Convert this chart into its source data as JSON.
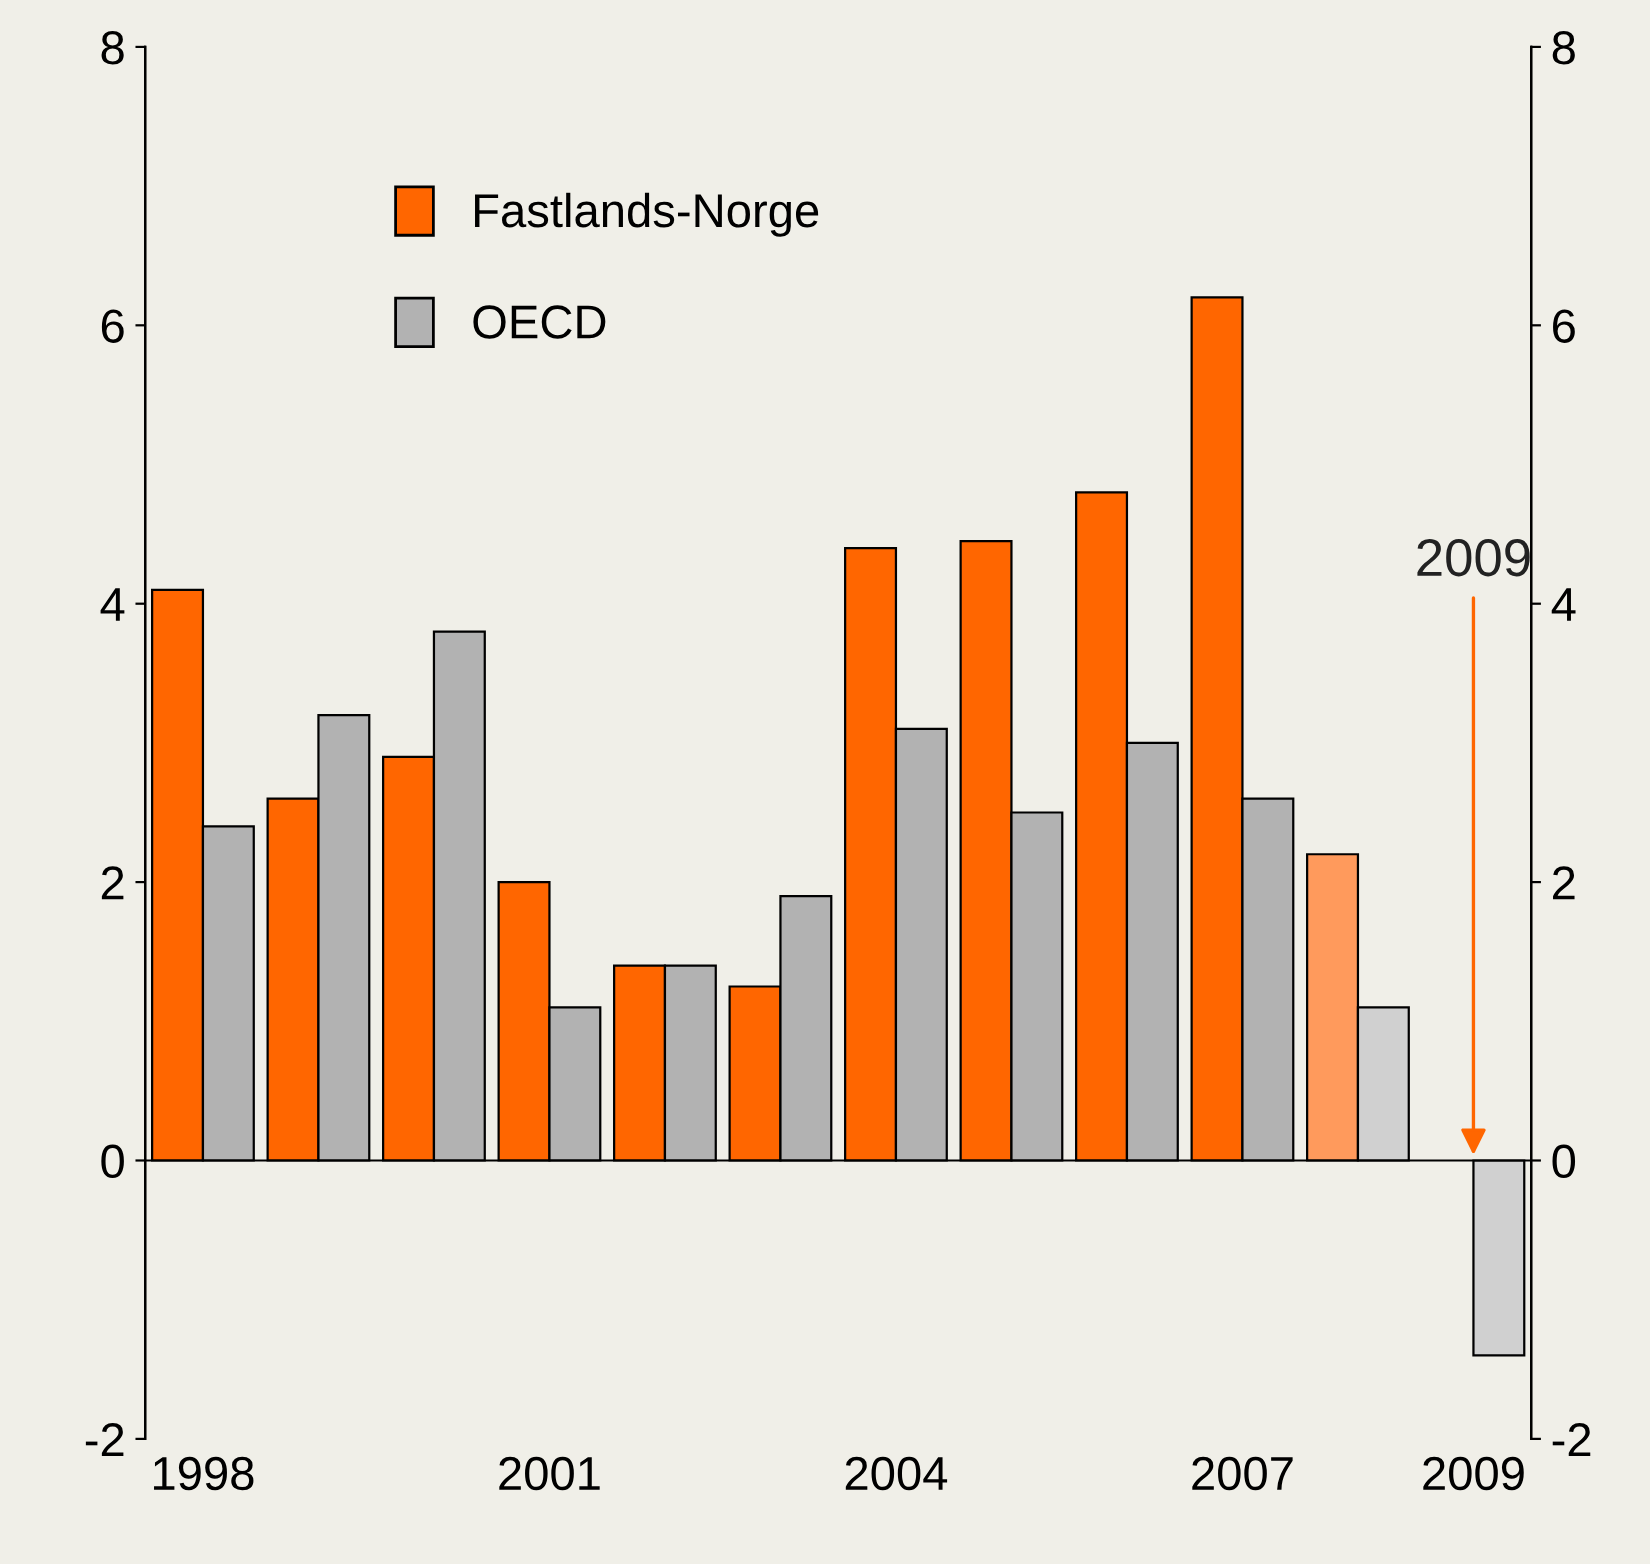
{
  "chart_data": {
    "type": "bar",
    "categories": [
      "1998",
      null,
      null,
      "2001",
      null,
      null,
      "2004",
      null,
      null,
      "2007",
      null,
      "2009"
    ],
    "series": [
      {
        "name": "Fastlands-Norge",
        "color": "#ff6600",
        "colors": [
          "#ff6600",
          "#ff6600",
          "#ff6600",
          "#ff6600",
          "#ff6600",
          "#ff6600",
          "#ff6600",
          "#ff6600",
          "#ff6600",
          "#ff6600",
          "#ff9a5c",
          "#ff9a5c"
        ],
        "values": [
          4.1,
          2.6,
          2.9,
          2.0,
          1.4,
          1.25,
          4.4,
          4.45,
          4.8,
          6.2,
          2.2,
          null
        ]
      },
      {
        "name": "OECD",
        "color": "#b2b2b2",
        "colors": [
          "#b2b2b2",
          "#b2b2b2",
          "#b2b2b2",
          "#b2b2b2",
          "#b2b2b2",
          "#b2b2b2",
          "#b2b2b2",
          "#b2b2b2",
          "#b2b2b2",
          "#b2b2b2",
          "#d0d0d0",
          "#d0d0d0"
        ],
        "values": [
          2.4,
          3.2,
          3.8,
          1.1,
          1.4,
          1.9,
          3.1,
          2.5,
          3.0,
          2.6,
          1.1,
          -1.4
        ]
      }
    ],
    "ylim": [
      -2,
      8
    ],
    "yticks": [
      -2,
      0,
      2,
      4,
      6,
      8
    ],
    "y2lim": [
      -2,
      8
    ],
    "y2ticks": [
      -2,
      0,
      2,
      4,
      6,
      8
    ],
    "annotations": [
      {
        "text": "2009",
        "x": "2009",
        "y": 0
      }
    ],
    "ref_lines": [
      {
        "axis": "y",
        "value": 0,
        "color": "#000000"
      }
    ],
    "legend": "top left",
    "grid": false
  }
}
